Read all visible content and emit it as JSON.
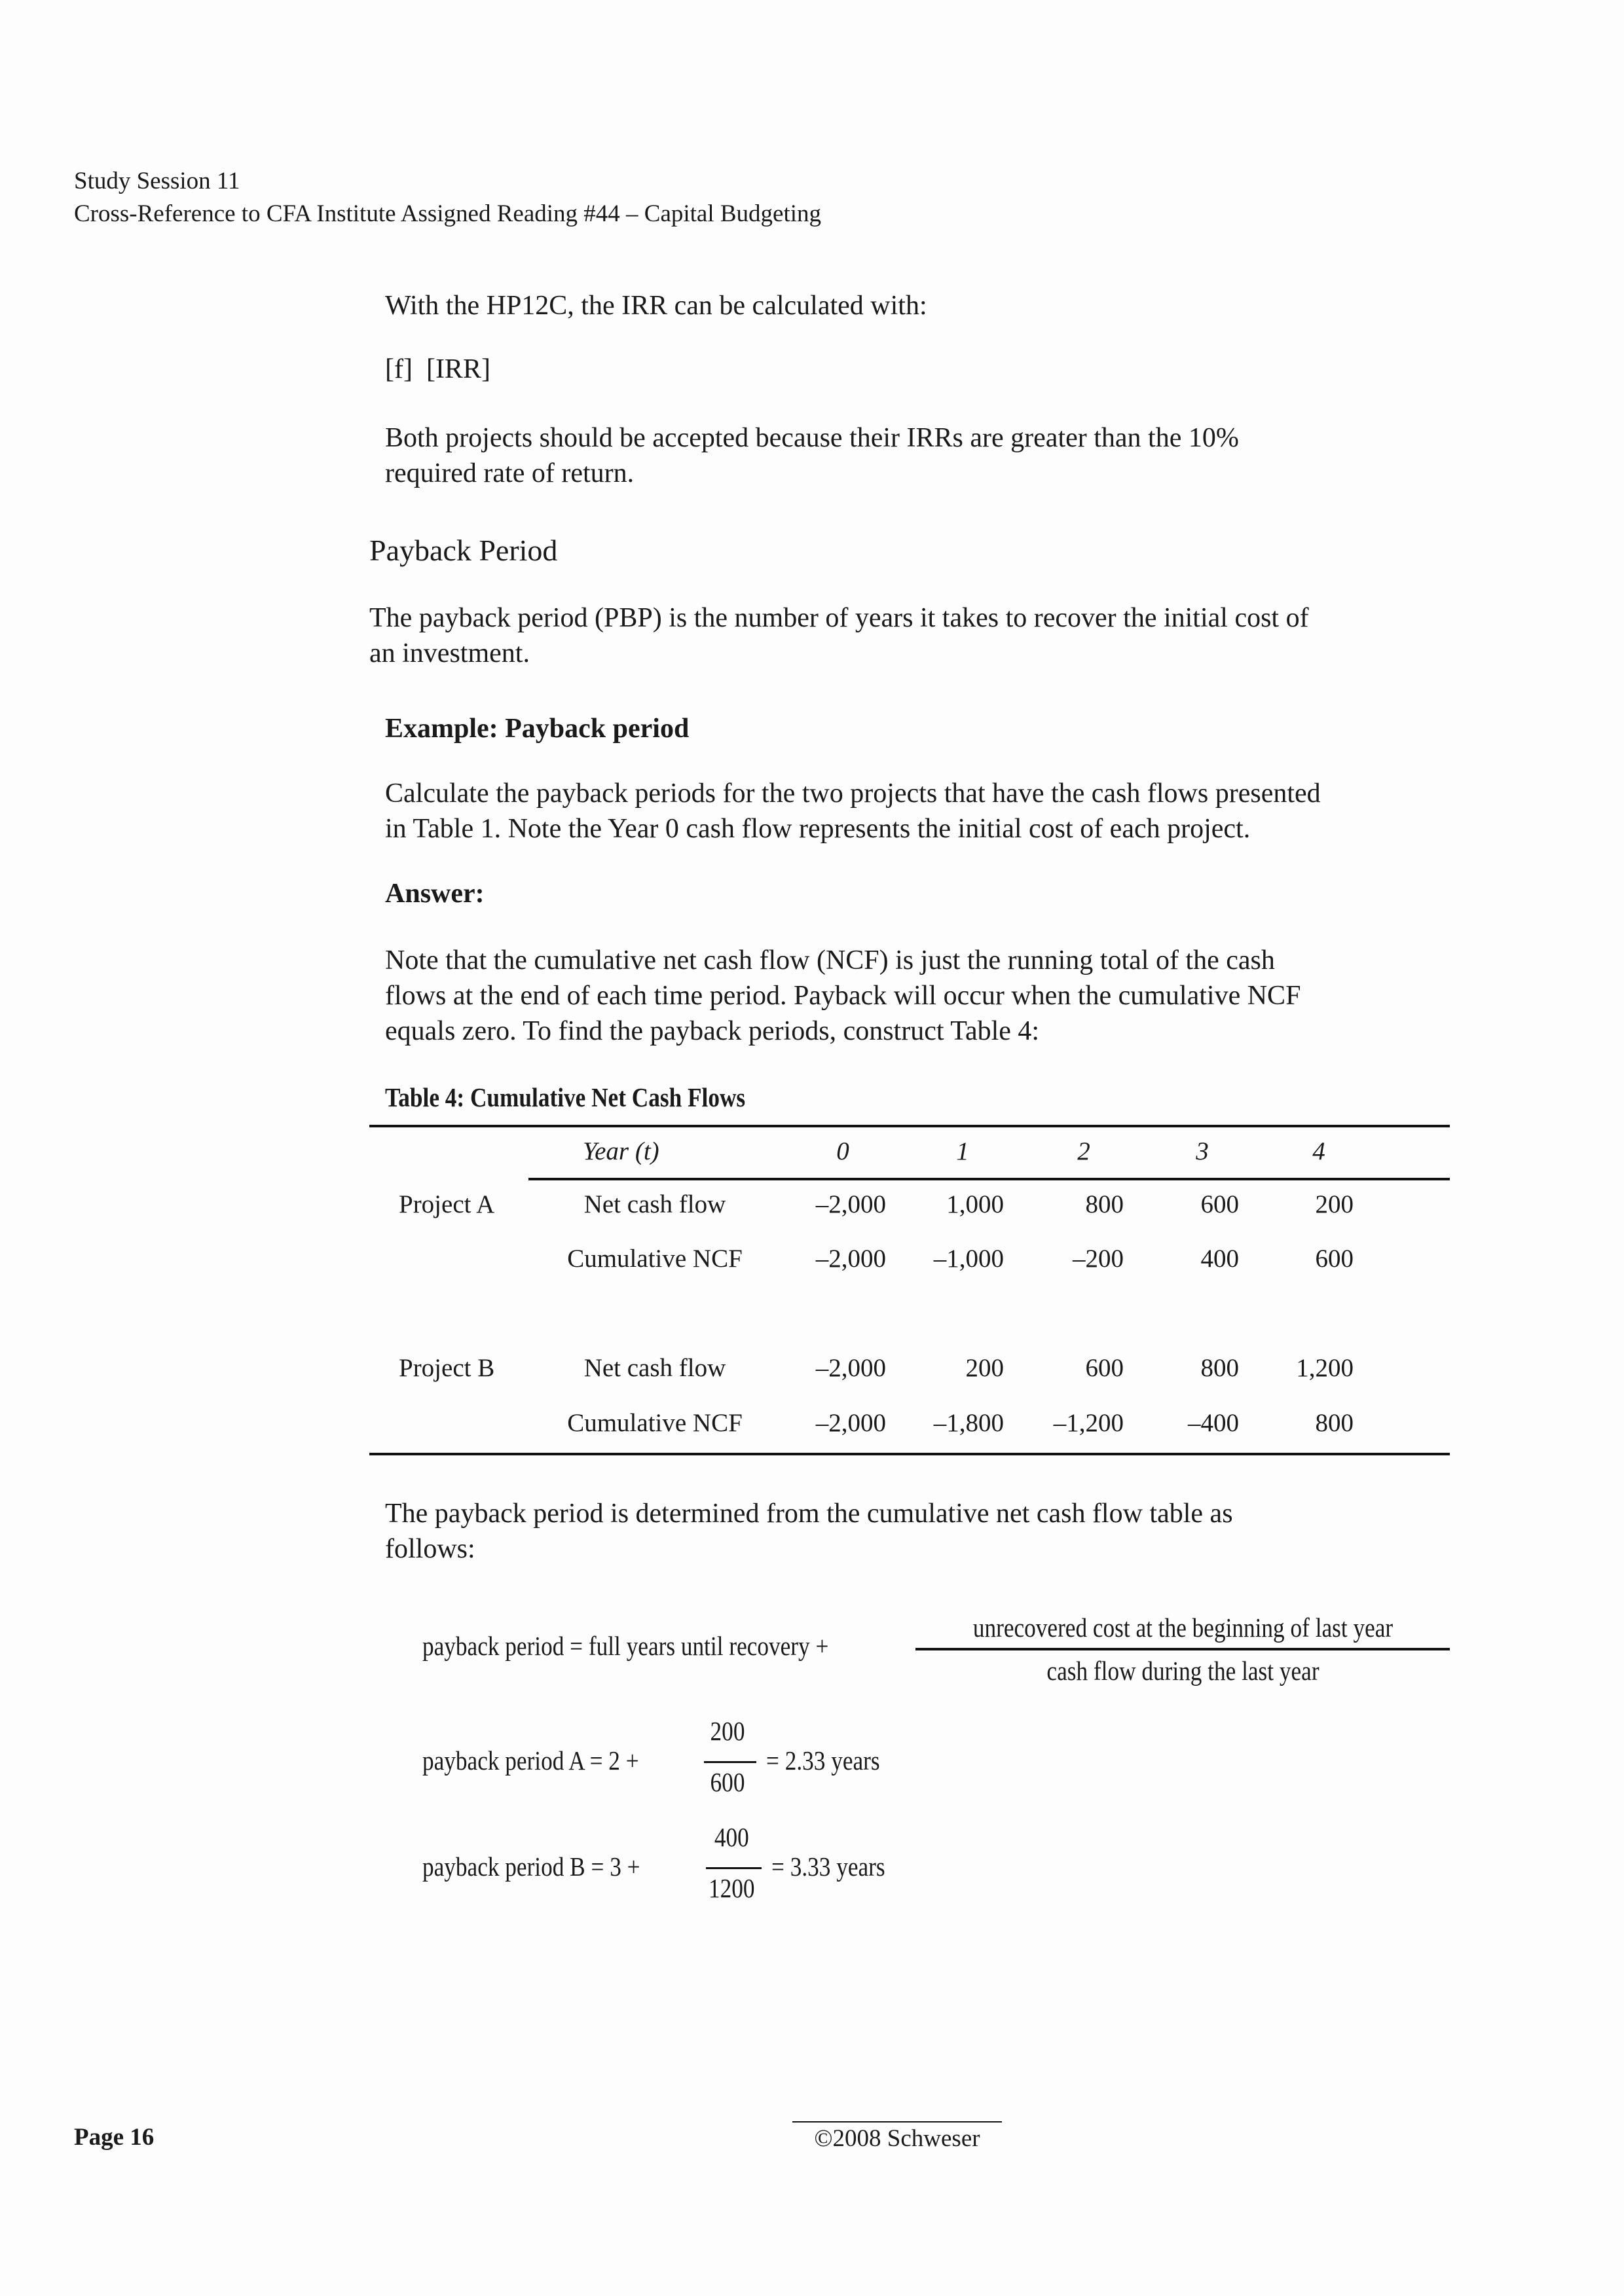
{
  "header": {
    "session": "Study Session 11",
    "crossref": "Cross-Reference to CFA Institute Assigned Reading #44 – Capital Budgeting"
  },
  "intro": {
    "line1": "With the HP12C, the IRR can be calculated with:",
    "keys": "[f]  [IRR]",
    "accept1": "Both projects should be accepted because their IRRs are greater than the 10%",
    "accept2": "required rate of return."
  },
  "section": {
    "title": "Payback Period",
    "def1": "The payback period (PBP) is the number of years it takes to recover the initial cost of",
    "def2": "an investment."
  },
  "example": {
    "title": "Example: Payback period",
    "q1": "Calculate the payback periods for the two projects that have the cash flows presented",
    "q2": "in Table 1. Note the Year 0 cash flow represents the initial cost of each project.",
    "answer": "Answer:",
    "n1": "Note that the cumulative net cash flow (NCF) is just the running total of the cash",
    "n2": "flows at the end of each time period. Payback will occur when the cumulative NCF",
    "n3": "equals zero. To find the payback periods, construct Table 4:"
  },
  "table": {
    "title": "Table 4: Cumulative Net Cash Flows",
    "year_label": "Year (t)",
    "years": [
      "0",
      "1",
      "2",
      "3",
      "4"
    ],
    "projects": [
      {
        "name": "Project A",
        "rows": [
          {
            "label": "Net cash flow",
            "values": [
              "–2,000",
              "1,000",
              "800",
              "600",
              "200"
            ]
          },
          {
            "label": "Cumulative NCF",
            "values": [
              "–2,000",
              "–1,000",
              "–200",
              "400",
              "600"
            ]
          }
        ]
      },
      {
        "name": "Project B",
        "rows": [
          {
            "label": "Net cash flow",
            "values": [
              "–2,000",
              "200",
              "600",
              "800",
              "1,200"
            ]
          },
          {
            "label": "Cumulative NCF",
            "values": [
              "–2,000",
              "–1,800",
              "–1,200",
              "–400",
              "800"
            ]
          }
        ]
      }
    ]
  },
  "after": {
    "l1": "The payback period is determined from the cumulative net cash flow table as",
    "l2": "follows:"
  },
  "formula": {
    "lhs": "payback period = full years until recovery +",
    "num": "unrecovered cost at the beginning of last year",
    "den": "cash flow during the last year"
  },
  "calcA": {
    "lhs": "payback period A = 2 +",
    "num": "200",
    "den": "600",
    "rhs": "= 2.33 years"
  },
  "calcB": {
    "lhs": "payback period B = 3 +",
    "num": "400",
    "den": "1200",
    "rhs": "= 3.33 years"
  },
  "footer": {
    "page": "Page 16",
    "copyright": "©2008 Schweser"
  }
}
